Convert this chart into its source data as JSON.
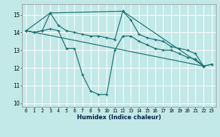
{
  "background_color": "#c2e8e8",
  "grid_color": "#ffffff",
  "line_color": "#1a7070",
  "xlabel": "Humidex (Indice chaleur)",
  "xlim": [
    -0.5,
    23.5
  ],
  "ylim": [
    9.8,
    15.6
  ],
  "yticks": [
    10,
    11,
    12,
    13,
    14,
    15
  ],
  "xticks": [
    0,
    1,
    2,
    3,
    4,
    5,
    6,
    7,
    8,
    9,
    10,
    11,
    12,
    13,
    14,
    15,
    16,
    17,
    18,
    19,
    20,
    21,
    22,
    23
  ],
  "xtick_labels": [
    "0",
    "1",
    "2",
    "3",
    "4",
    "5",
    "6",
    "7",
    "8",
    "9",
    "10",
    "11",
    "12",
    "13",
    "14",
    "15",
    "16",
    "17",
    "18",
    "19",
    "20",
    "21",
    "22",
    "23"
  ],
  "series": [
    {
      "x": [
        0,
        1,
        2,
        3,
        4,
        5,
        6,
        7,
        8,
        9,
        10,
        11,
        12,
        13,
        14,
        15,
        16,
        17,
        18,
        19,
        20,
        21,
        22,
        23
      ],
      "y": [
        14.1,
        14.0,
        14.1,
        14.2,
        14.1,
        13.1,
        13.1,
        11.6,
        10.7,
        10.5,
        10.5,
        13.0,
        13.8,
        13.8,
        13.5,
        13.3,
        13.1,
        13.0,
        13.0,
        12.8,
        12.6,
        12.5,
        12.1,
        12.2
      ],
      "linestyle": "-",
      "marker": true
    },
    {
      "x": [
        0,
        1,
        2,
        3,
        4,
        5,
        6,
        7,
        8,
        9,
        10,
        11,
        12,
        13,
        14,
        15,
        16,
        17,
        18,
        19,
        20,
        21,
        22,
        23
      ],
      "y": [
        14.1,
        14.0,
        14.1,
        15.1,
        14.4,
        14.1,
        14.0,
        13.9,
        13.8,
        13.8,
        13.7,
        13.6,
        15.2,
        14.7,
        13.9,
        13.7,
        13.6,
        13.5,
        13.2,
        13.1,
        13.0,
        12.8,
        12.1,
        12.2
      ],
      "linestyle": "-",
      "marker": true
    },
    {
      "x": [
        0,
        3,
        12,
        22
      ],
      "y": [
        14.1,
        15.1,
        15.2,
        12.1
      ],
      "linestyle": "-",
      "marker": true
    },
    {
      "x": [
        0,
        22
      ],
      "y": [
        14.1,
        12.1
      ],
      "linestyle": "-",
      "marker": false
    }
  ]
}
